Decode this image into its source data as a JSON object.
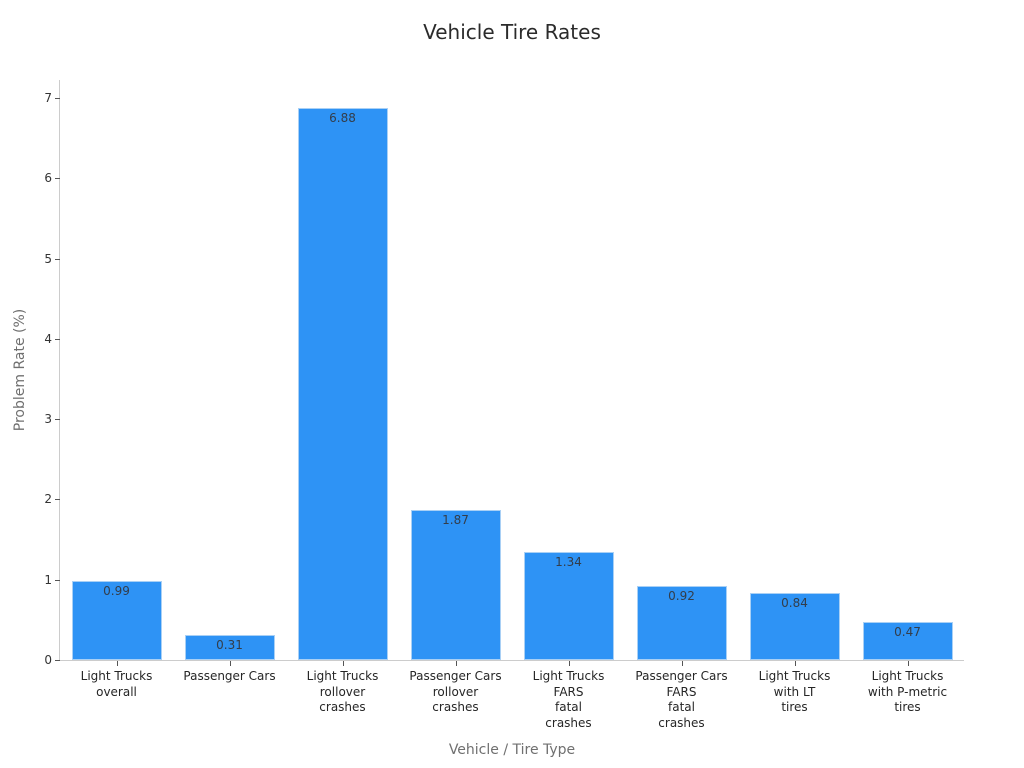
{
  "chart_data": {
    "type": "bar",
    "title": "Vehicle Tire Rates",
    "xlabel": "Vehicle / Tire Type",
    "ylabel": "Problem Rate (%)",
    "ylim": [
      0,
      7.25
    ],
    "yticks": [
      0,
      1,
      2,
      3,
      4,
      5,
      6,
      7
    ],
    "grid": false,
    "legend": null,
    "bar_color": "#2e93f5",
    "categories": [
      "Light Trucks\noverall",
      "Passenger Cars",
      "Light Trucks\nrollover\ncrashes",
      "Passenger Cars\nrollover\ncrashes",
      "Light Trucks\nFARS\nfatal\ncrashes",
      "Passenger Cars\nFARS\nfatal\ncrashes",
      "Light Trucks\nwith LT\ntires",
      "Light Trucks\nwith P-metric\ntires"
    ],
    "values": [
      0.99,
      0.31,
      6.88,
      1.87,
      1.34,
      0.92,
      0.84,
      0.47
    ],
    "value_labels": [
      "0.99",
      "0.31",
      "6.88",
      "1.87",
      "1.34",
      "0.92",
      "0.84",
      "0.47"
    ]
  }
}
